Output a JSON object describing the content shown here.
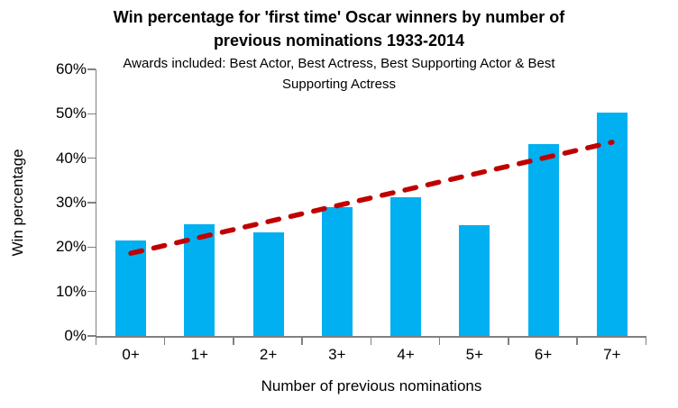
{
  "chart_data": {
    "type": "bar",
    "title": "Win percentage for 'first time' Oscar winners by number of previous nominations 1933-2014",
    "title_lines": [
      "Win percentage for 'first time' Oscar winners by number of",
      "previous nominations 1933-2014"
    ],
    "subtitle": "Awards included: Best Actor, Best Actress, Best Supporting Actor & Best Supporting Actress",
    "subtitle_lines": [
      "Awards included: Best Actor, Best Actress, Best Supporting Actor & Best",
      "Supporting Actress"
    ],
    "xlabel": "Number of previous nominations",
    "ylabel": "Win percentage",
    "categories": [
      "0+",
      "1+",
      "2+",
      "3+",
      "4+",
      "5+",
      "6+",
      "7+"
    ],
    "values": [
      21.5,
      25.2,
      23.4,
      28.9,
      31.3,
      25.0,
      43.2,
      50.2
    ],
    "ylim": [
      0,
      60
    ],
    "ytick_step": 10,
    "ytick_labels": [
      "0%",
      "10%",
      "20%",
      "30%",
      "40%",
      "50%",
      "60%"
    ],
    "grid": false,
    "legend": false,
    "trendline": {
      "style": "dashed",
      "start_value": 18.6,
      "end_value": 43.6,
      "color": "#C00000"
    },
    "colors": {
      "bar": "#00B0F0",
      "axis": "#808080",
      "text": "#000000",
      "background": "#FFFFFF"
    }
  }
}
